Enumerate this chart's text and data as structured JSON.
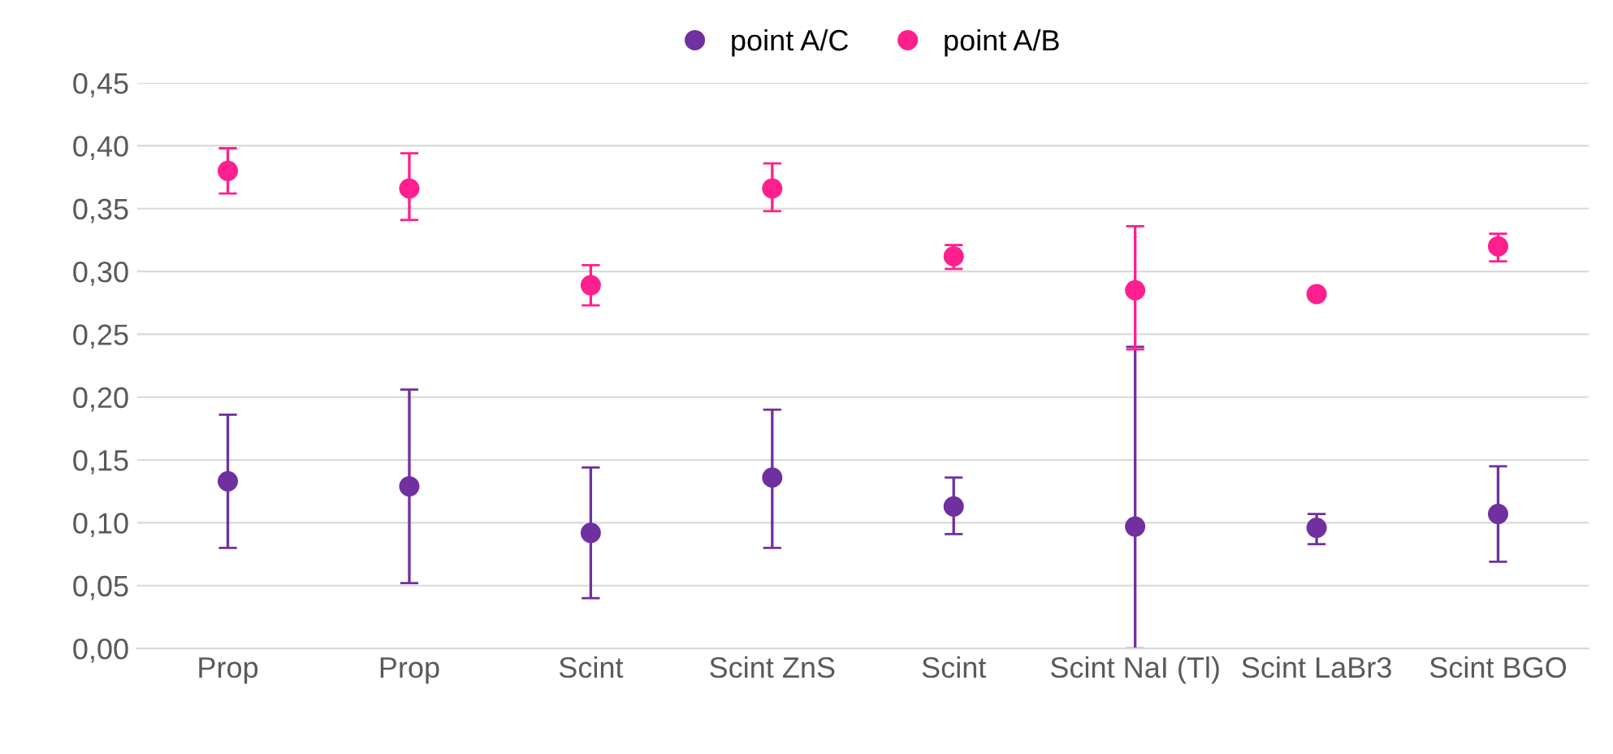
{
  "chart_data": {
    "type": "scatter",
    "categories": [
      "Prop",
      "Prop",
      "Scint",
      "Scint ZnS",
      "Scint",
      "Scint NaI (Tl)",
      "Scint LaBr3",
      "Scint BGO"
    ],
    "series": [
      {
        "name": "point A/C",
        "color": "#7030a0",
        "values": [
          0.133,
          0.129,
          0.092,
          0.136,
          0.113,
          0.097,
          0.096,
          0.107
        ],
        "errors": [
          [
            0.08,
            0.186
          ],
          [
            0.052,
            0.206
          ],
          [
            0.04,
            0.144
          ],
          [
            0.08,
            0.19
          ],
          [
            0.091,
            0.136
          ],
          [
            0.0,
            0.24
          ],
          [
            0.083,
            0.107
          ],
          [
            0.069,
            0.145
          ]
        ]
      },
      {
        "name": "point A/B",
        "color": "#ff1f8e",
        "values": [
          0.38,
          0.366,
          0.289,
          0.366,
          0.312,
          0.285,
          0.282,
          0.32
        ],
        "errors": [
          [
            0.362,
            0.398
          ],
          [
            0.341,
            0.394
          ],
          [
            0.273,
            0.305
          ],
          [
            0.348,
            0.386
          ],
          [
            0.302,
            0.321
          ],
          [
            0.238,
            0.336
          ],
          null,
          [
            0.308,
            0.33
          ]
        ]
      }
    ],
    "ylim": [
      0,
      0.45
    ],
    "yticks": [
      {
        "value": 0,
        "label": "0,00"
      },
      {
        "value": 0.05,
        "label": "0,05"
      },
      {
        "value": 0.1,
        "label": "0,10"
      },
      {
        "value": 0.15,
        "label": "0,15"
      },
      {
        "value": 0.2,
        "label": "0,20"
      },
      {
        "value": 0.25,
        "label": "0,25"
      },
      {
        "value": 0.3,
        "label": "0,30"
      },
      {
        "value": 0.35,
        "label": "0,35"
      },
      {
        "value": 0.4,
        "label": "0,40"
      },
      {
        "value": 0.45,
        "label": "0,45"
      }
    ],
    "grid": "y",
    "legend": "top",
    "marker": "circle"
  }
}
